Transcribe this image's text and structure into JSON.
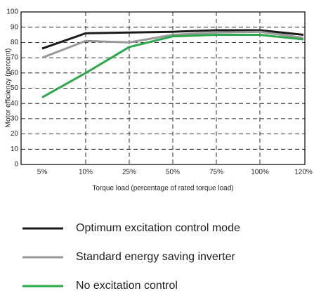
{
  "chart_data": {
    "type": "line",
    "categories": [
      "5%",
      "10%",
      "25%",
      "50%",
      "75%",
      "100%",
      "120%"
    ],
    "series": [
      {
        "name": "Optimum excitation control mode",
        "color": "#1a1a1a",
        "values": [
          76,
          86,
          86.5,
          87,
          88,
          88,
          85
        ]
      },
      {
        "name": "Standard energy saving inverter",
        "color": "#999999",
        "values": [
          70,
          81,
          80,
          85,
          86.5,
          87,
          83
        ]
      },
      {
        "name": "No excitation control",
        "color": "#2aa84a",
        "values": [
          44,
          60,
          77,
          84,
          85,
          85,
          82
        ]
      }
    ],
    "ylim": [
      0,
      100
    ],
    "yticks": [
      0,
      10,
      20,
      30,
      40,
      50,
      60,
      70,
      80,
      90,
      100
    ],
    "y_label": "Motor efficiency (percent)",
    "x_label": "Torque load (percentage of rated torque load)",
    "grid": true
  }
}
